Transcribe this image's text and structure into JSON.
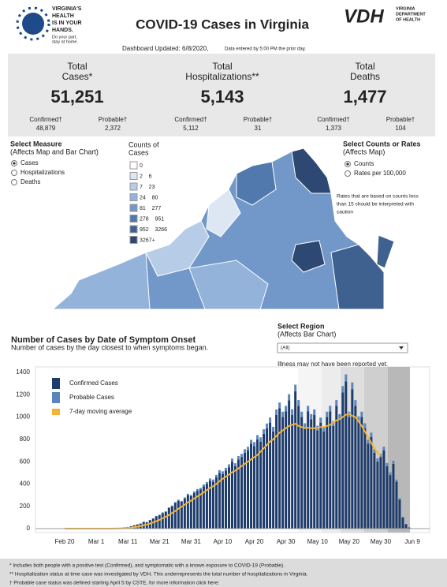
{
  "header": {
    "logo_lines": [
      "VIRGINIA'S",
      "HEALTH",
      "IS IN YOUR",
      "HANDS."
    ],
    "logo_tagline": [
      "Do your part,",
      "stay at home."
    ],
    "title": "COVID-19 Cases in Virginia",
    "agency": "VDH",
    "agency_name": [
      "VIRGINIA",
      "DEPARTMENT",
      "OF HEALTH"
    ],
    "updated": "Dashboard Updated: 6/8/2020,",
    "updated_note": "Data entered by 5:00 PM the prior day."
  },
  "stats": [
    {
      "label": [
        "Total",
        "Cases*"
      ],
      "value": "51,251",
      "confirmed_label": "Confirmed†",
      "confirmed": "48,879",
      "probable_label": "Probable†",
      "probable": "2,372"
    },
    {
      "label": [
        "Total",
        "Hospitalizations**"
      ],
      "value": "5,143",
      "confirmed_label": "Confirmed†",
      "confirmed": "5,112",
      "probable_label": "Probable†",
      "probable": "31"
    },
    {
      "label": [
        "Total",
        "Deaths"
      ],
      "value": "1,477",
      "confirmed_label": "Confirmed†",
      "confirmed": "1,373",
      "probable_label": "Probable†",
      "probable": "104"
    }
  ],
  "measure": {
    "title": "Select Measure",
    "subtitle": "(Affects Map and Bar Chart)",
    "options": [
      "Cases",
      "Hospitalizations",
      "Deaths"
    ]
  },
  "rates": {
    "title": "Select Counts or Rates",
    "subtitle": "(Affects Map)",
    "options": [
      "Counts",
      "Rates per 100,000"
    ],
    "note": [
      "Rates that are based on counts less",
      "than 15 should be interpreted with",
      "caution"
    ]
  },
  "map_legend": {
    "title": [
      "Counts of",
      "Cases"
    ],
    "bins": [
      "0",
      "2    6",
      "7    23",
      "24    80",
      "81    277",
      "278    951",
      "952    3266",
      "3267+"
    ],
    "colors": [
      "#ffffff",
      "#dce7f3",
      "#b7cde7",
      "#93b3da",
      "#7198c8",
      "#5179ad",
      "#3e6190",
      "#2d4872"
    ]
  },
  "region": {
    "title": "Select Region",
    "subtitle": "(Affects Bar Chart)",
    "selected": "(All)",
    "note": "Illness may not have been reported yet."
  },
  "chart_data": {
    "type": "bar",
    "stacked": true,
    "title": "Number of Cases by Date of Symptom Onset",
    "subtitle": "Number of cases by the day closest to when symptoms began.",
    "categories": [
      "Feb 20",
      null,
      null,
      null,
      null,
      null,
      null,
      null,
      null,
      null,
      "Mar 1",
      null,
      null,
      null,
      null,
      null,
      null,
      null,
      null,
      null,
      "Mar 11",
      null,
      null,
      null,
      null,
      null,
      null,
      null,
      null,
      null,
      "Mar 21",
      null,
      null,
      null,
      null,
      null,
      null,
      null,
      null,
      null,
      "Mar 31",
      null,
      null,
      null,
      null,
      null,
      null,
      null,
      null,
      null,
      "Apr 10",
      null,
      null,
      null,
      null,
      null,
      null,
      null,
      null,
      null,
      "Apr 20",
      null,
      null,
      null,
      null,
      null,
      null,
      null,
      null,
      null,
      "Apr 30",
      null,
      null,
      null,
      null,
      null,
      null,
      null,
      null,
      null,
      "May 10",
      null,
      null,
      null,
      null,
      null,
      null,
      null,
      null,
      null,
      "May 20",
      null,
      null,
      null,
      null,
      null,
      null,
      null,
      null,
      null,
      "May 30",
      null,
      null,
      null,
      null,
      null,
      null,
      null,
      null,
      null,
      "Jun 9"
    ],
    "series": [
      {
        "name": "Confirmed Cases",
        "color": "#1d3b6b",
        "values": [
          0,
          0,
          0,
          0,
          0,
          0,
          0,
          0,
          0,
          0,
          0,
          0,
          0,
          0,
          2,
          1,
          3,
          5,
          8,
          12,
          15,
          22,
          30,
          38,
          45,
          60,
          58,
          75,
          90,
          110,
          120,
          140,
          150,
          185,
          200,
          230,
          250,
          240,
          270,
          300,
          290,
          320,
          340,
          350,
          380,
          400,
          430,
          420,
          460,
          500,
          490,
          520,
          550,
          600,
          560,
          620,
          640,
          680,
          700,
          760,
          740,
          800,
          780,
          850,
          900,
          950,
          870,
          1020,
          1080,
          1000,
          1050,
          1150,
          1020,
          1230,
          1100,
          1000,
          900,
          1050,
          980,
          1020,
          880,
          950,
          870,
          1000,
          1050,
          920,
          1100,
          980,
          1220,
          1320,
          1000,
          1250,
          1100,
          960,
          1000,
          900,
          760,
          820,
          680,
          600,
          640,
          700,
          560,
          480,
          580,
          420,
          260,
          100,
          40,
          10,
          0
        ]
      },
      {
        "name": "Probable Cases",
        "color": "#5b86bd",
        "values": [
          0,
          0,
          0,
          0,
          0,
          0,
          0,
          0,
          0,
          0,
          0,
          0,
          0,
          0,
          0,
          0,
          0,
          0,
          0,
          0,
          0,
          1,
          1,
          1,
          2,
          2,
          2,
          3,
          3,
          4,
          4,
          5,
          6,
          6,
          7,
          8,
          9,
          8,
          10,
          12,
          12,
          14,
          15,
          15,
          16,
          18,
          20,
          20,
          22,
          24,
          24,
          25,
          26,
          28,
          26,
          30,
          30,
          32,
          34,
          36,
          36,
          38,
          38,
          40,
          42,
          45,
          42,
          48,
          50,
          48,
          50,
          55,
          50,
          60,
          52,
          48,
          44,
          50,
          46,
          48,
          42,
          45,
          42,
          48,
          50,
          44,
          52,
          46,
          58,
          62,
          48,
          60,
          52,
          46,
          48,
          44,
          36,
          40,
          32,
          30,
          30,
          34,
          28,
          24,
          28,
          20,
          12,
          5,
          2,
          0,
          0
        ]
      },
      {
        "name": "7-day moving average",
        "color": "#f5b335",
        "type": "line",
        "values": [
          0,
          0,
          0,
          0,
          0,
          0,
          0,
          0,
          0,
          0,
          0,
          0,
          0,
          0,
          0,
          1,
          1,
          2,
          3,
          4,
          6,
          9,
          13,
          17,
          23,
          30,
          37,
          45,
          55,
          67,
          78,
          92,
          105,
          122,
          140,
          158,
          178,
          195,
          215,
          235,
          250,
          270,
          288,
          305,
          325,
          345,
          365,
          380,
          400,
          425,
          445,
          465,
          485,
          505,
          520,
          540,
          560,
          580,
          600,
          620,
          640,
          660,
          690,
          720,
          750,
          780,
          800,
          830,
          860,
          880,
          900,
          920,
          930,
          940,
          920,
          910,
          900,
          905,
          900,
          900,
          905,
          910,
          910,
          920,
          930,
          950,
          970,
          980,
          1000,
          1020,
          1030,
          1010,
          1000,
          960,
          920,
          870,
          820,
          770,
          720,
          680,
          650,
          null,
          null,
          null,
          null,
          null,
          null,
          null,
          null,
          null,
          null
        ]
      }
    ],
    "ylim": [
      0,
      1400
    ],
    "yticks": [
      0,
      200,
      400,
      600,
      800,
      1000,
      1200,
      1400
    ],
    "legend": "top-left",
    "grid": false
  },
  "footnotes": [
    "* Includes both people with a positive test (Confirmed), and symptomatic with a known exposure to COVID-19 (Probable).",
    "** Hospitalization status at time case was investigated by VDH. This underrepresents the total number of hospitalizations in Virginia.",
    "† Probable case status was defined starting April 5 by CSTE, for more information click here:"
  ]
}
